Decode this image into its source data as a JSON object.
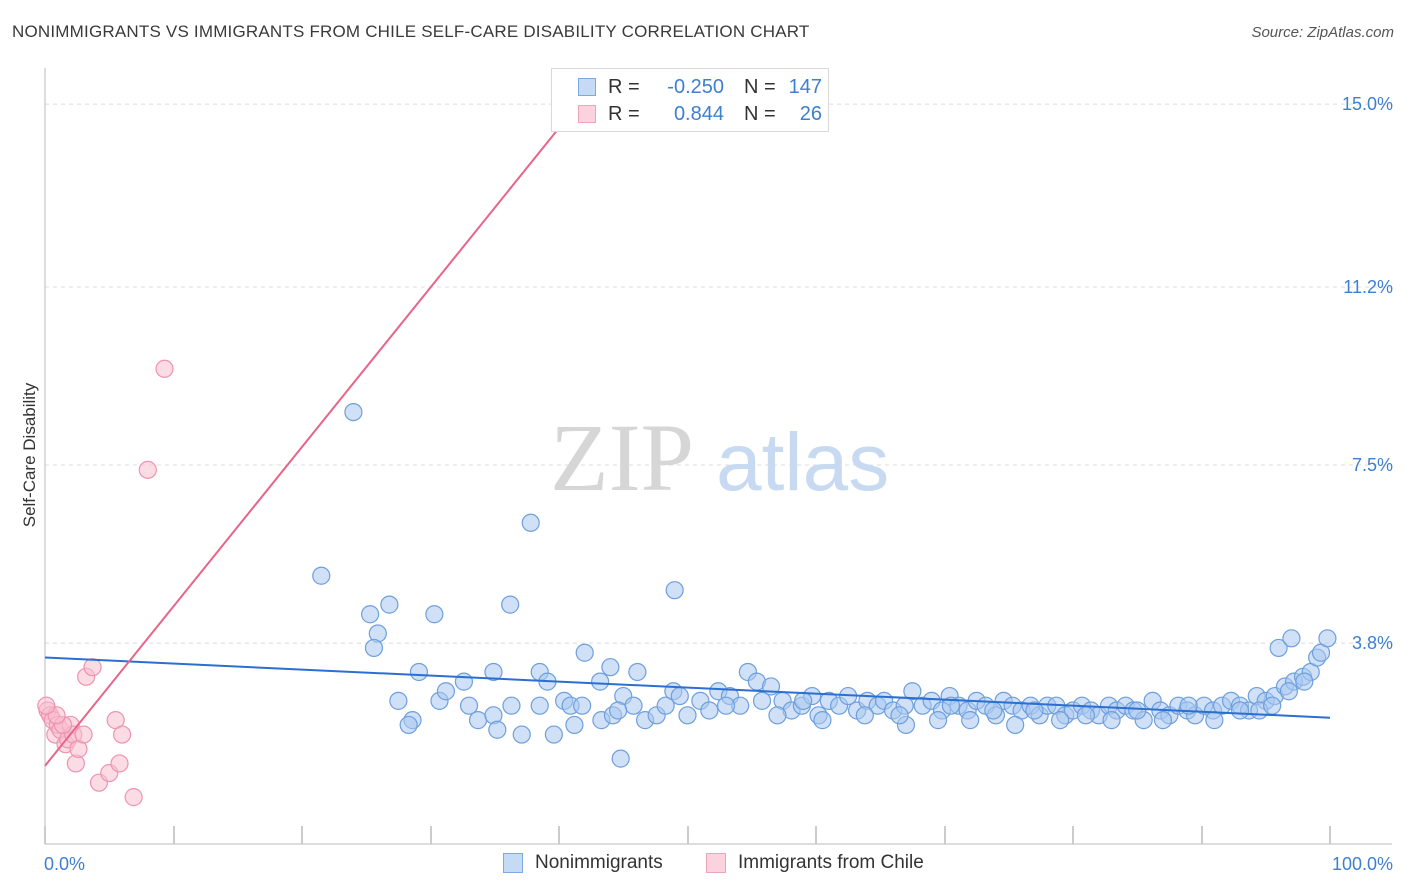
{
  "title": "NONIMMIGRANTS VS IMMIGRANTS FROM CHILE SELF-CARE DISABILITY CORRELATION CHART",
  "source": "Source: ZipAtlas.com",
  "watermark": {
    "zip": "ZIP",
    "atlas": "atlas"
  },
  "legend": {
    "rows": [
      {
        "r_label": "R =",
        "r_value": "-0.250",
        "n_label": "N =",
        "n_value": "147",
        "color": "#8ab4ea"
      },
      {
        "r_label": "R =",
        "r_value": "0.844",
        "n_label": "N =",
        "n_value": "26",
        "color": "#f4a6bd"
      }
    ]
  },
  "bottom_legend": {
    "series1": "Nonimmigrants",
    "series2": "Immigrants from Chile"
  },
  "colors": {
    "blue_fill": "#aac9f0",
    "blue_stroke": "#6d9fdd",
    "blue_line": "#2a6fd1",
    "pink_fill": "#f7bfd0",
    "pink_stroke": "#ee93b0",
    "pink_line": "#e7648b",
    "tick_text": "#3d7fd1"
  },
  "chart_data": {
    "type": "scatter",
    "title": "NONIMMIGRANTS VS IMMIGRANTS FROM CHILE SELF-CARE DISABILITY CORRELATION CHART",
    "xlabel": "",
    "ylabel": "Self-Care Disability",
    "xlim": [
      0,
      100
    ],
    "ylim": [
      0,
      15.5
    ],
    "x_tick_labels": [
      "0.0%",
      "100.0%"
    ],
    "y_ticks": [
      3.8,
      7.5,
      11.2,
      15.0
    ],
    "y_tick_labels": [
      "3.8%",
      "7.5%",
      "11.2%",
      "15.0%"
    ],
    "grid": "horizontal dashed",
    "legend_position": "top-center",
    "series": [
      {
        "name": "Nonimmigrants",
        "trend": {
          "x": [
            0,
            100
          ],
          "y": [
            3.5,
            2.25
          ]
        },
        "points": [
          [
            24.0,
            8.6
          ],
          [
            21.5,
            5.2
          ],
          [
            37.8,
            6.3
          ],
          [
            36.2,
            4.6
          ],
          [
            49.0,
            4.9
          ],
          [
            25.3,
            4.4
          ],
          [
            26.8,
            4.6
          ],
          [
            30.3,
            4.4
          ],
          [
            25.9,
            4.0
          ],
          [
            25.6,
            3.7
          ],
          [
            42.0,
            3.6
          ],
          [
            96.0,
            3.7
          ],
          [
            97.0,
            3.9
          ],
          [
            29.1,
            3.2
          ],
          [
            34.9,
            3.2
          ],
          [
            38.5,
            3.2
          ],
          [
            46.1,
            3.2
          ],
          [
            54.7,
            3.2
          ],
          [
            55.4,
            3.0
          ],
          [
            39.1,
            3.0
          ],
          [
            43.2,
            3.0
          ],
          [
            27.5,
            2.6
          ],
          [
            28.6,
            2.2
          ],
          [
            28.3,
            2.1
          ],
          [
            30.7,
            2.6
          ],
          [
            31.2,
            2.8
          ],
          [
            33.0,
            2.5
          ],
          [
            33.7,
            2.2
          ],
          [
            34.9,
            2.3
          ],
          [
            36.3,
            2.5
          ],
          [
            35.2,
            2.0
          ],
          [
            37.1,
            1.9
          ],
          [
            38.5,
            2.5
          ],
          [
            39.6,
            1.9
          ],
          [
            40.4,
            2.6
          ],
          [
            40.9,
            2.5
          ],
          [
            41.8,
            2.5
          ],
          [
            43.3,
            2.2
          ],
          [
            44.2,
            2.3
          ],
          [
            45.0,
            2.7
          ],
          [
            45.8,
            2.5
          ],
          [
            46.7,
            2.2
          ],
          [
            47.6,
            2.3
          ],
          [
            48.3,
            2.5
          ],
          [
            48.9,
            2.8
          ],
          [
            49.4,
            2.7
          ],
          [
            50.0,
            2.3
          ],
          [
            51.0,
            2.6
          ],
          [
            51.7,
            2.4
          ],
          [
            52.4,
            2.8
          ],
          [
            53.3,
            2.7
          ],
          [
            54.1,
            2.5
          ],
          [
            55.8,
            2.6
          ],
          [
            56.5,
            2.9
          ],
          [
            57.4,
            2.6
          ],
          [
            58.1,
            2.4
          ],
          [
            58.9,
            2.5
          ],
          [
            59.7,
            2.7
          ],
          [
            60.2,
            2.3
          ],
          [
            61.0,
            2.6
          ],
          [
            61.8,
            2.5
          ],
          [
            62.5,
            2.7
          ],
          [
            63.2,
            2.4
          ],
          [
            64.0,
            2.6
          ],
          [
            64.8,
            2.5
          ],
          [
            65.3,
            2.6
          ],
          [
            66.0,
            2.4
          ],
          [
            66.9,
            2.5
          ],
          [
            67.5,
            2.8
          ],
          [
            68.3,
            2.5
          ],
          [
            69.0,
            2.6
          ],
          [
            69.8,
            2.4
          ],
          [
            70.4,
            2.7
          ],
          [
            71.1,
            2.5
          ],
          [
            71.8,
            2.4
          ],
          [
            72.5,
            2.6
          ],
          [
            73.2,
            2.5
          ],
          [
            74.0,
            2.3
          ],
          [
            74.6,
            2.6
          ],
          [
            75.3,
            2.5
          ],
          [
            76.0,
            2.4
          ],
          [
            76.7,
            2.5
          ],
          [
            77.4,
            2.3
          ],
          [
            78.0,
            2.5
          ],
          [
            78.7,
            2.5
          ],
          [
            79.4,
            2.3
          ],
          [
            80.0,
            2.4
          ],
          [
            80.7,
            2.5
          ],
          [
            81.4,
            2.4
          ],
          [
            82.0,
            2.3
          ],
          [
            82.8,
            2.5
          ],
          [
            83.4,
            2.4
          ],
          [
            84.1,
            2.5
          ],
          [
            84.7,
            2.4
          ],
          [
            85.5,
            2.2
          ],
          [
            86.2,
            2.6
          ],
          [
            86.8,
            2.4
          ],
          [
            87.5,
            2.3
          ],
          [
            88.2,
            2.5
          ],
          [
            88.9,
            2.4
          ],
          [
            89.5,
            2.3
          ],
          [
            90.2,
            2.5
          ],
          [
            90.9,
            2.4
          ],
          [
            91.6,
            2.5
          ],
          [
            92.3,
            2.6
          ],
          [
            93.0,
            2.5
          ],
          [
            93.7,
            2.4
          ],
          [
            94.3,
            2.7
          ],
          [
            95.0,
            2.6
          ],
          [
            95.7,
            2.7
          ],
          [
            96.5,
            2.9
          ],
          [
            97.2,
            3.0
          ],
          [
            97.9,
            3.1
          ],
          [
            98.5,
            3.2
          ],
          [
            99.0,
            3.5
          ],
          [
            99.3,
            3.6
          ],
          [
            99.8,
            3.9
          ],
          [
            60.5,
            2.2
          ],
          [
            57.0,
            2.3
          ],
          [
            63.8,
            2.3
          ],
          [
            67.0,
            2.1
          ],
          [
            69.5,
            2.2
          ],
          [
            72.0,
            2.2
          ],
          [
            75.5,
            2.1
          ],
          [
            79.0,
            2.2
          ],
          [
            83.0,
            2.2
          ],
          [
            87.0,
            2.2
          ],
          [
            91.0,
            2.2
          ],
          [
            94.5,
            2.4
          ],
          [
            96.8,
            2.8
          ],
          [
            98.0,
            3.0
          ],
          [
            32.6,
            3.0
          ],
          [
            44.6,
            2.4
          ],
          [
            53.0,
            2.5
          ],
          [
            59.0,
            2.6
          ],
          [
            66.5,
            2.3
          ],
          [
            70.5,
            2.5
          ],
          [
            73.8,
            2.4
          ],
          [
            77.0,
            2.4
          ],
          [
            81.0,
            2.3
          ],
          [
            85.0,
            2.4
          ],
          [
            89.0,
            2.5
          ],
          [
            93.0,
            2.4
          ],
          [
            95.5,
            2.5
          ],
          [
            44.8,
            1.4
          ],
          [
            44.0,
            3.3
          ],
          [
            41.2,
            2.1
          ]
        ]
      },
      {
        "name": "Immigrants from Chile",
        "trend": {
          "x": [
            0,
            41.5
          ],
          "y": [
            1.25,
            15.0
          ]
        },
        "points": [
          [
            9.3,
            9.5
          ],
          [
            8.0,
            7.4
          ],
          [
            0.2,
            2.4
          ],
          [
            0.4,
            2.3
          ],
          [
            0.6,
            2.2
          ],
          [
            0.8,
            1.9
          ],
          [
            1.0,
            2.1
          ],
          [
            1.2,
            2.0
          ],
          [
            1.6,
            1.7
          ],
          [
            1.8,
            1.8
          ],
          [
            2.0,
            2.1
          ],
          [
            2.2,
            1.9
          ],
          [
            2.4,
            1.3
          ],
          [
            2.6,
            1.6
          ],
          [
            3.0,
            1.9
          ],
          [
            3.2,
            3.1
          ],
          [
            3.7,
            3.3
          ],
          [
            4.2,
            0.9
          ],
          [
            5.0,
            1.1
          ],
          [
            5.5,
            2.2
          ],
          [
            5.8,
            1.3
          ],
          [
            6.0,
            1.9
          ],
          [
            6.9,
            0.6
          ],
          [
            1.4,
            2.1
          ],
          [
            0.9,
            2.3
          ],
          [
            0.1,
            2.5
          ]
        ]
      }
    ]
  }
}
